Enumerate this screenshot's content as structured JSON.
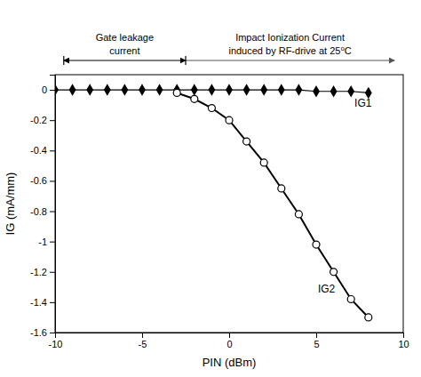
{
  "chart_data": {
    "type": "line",
    "x_label": "PIN (dBm)",
    "y_label": "IG (mA/mm)",
    "xlim": [
      -10,
      10
    ],
    "ylim": [
      -1.6,
      0.1
    ],
    "xticks": [
      -10,
      -5,
      0,
      5,
      10
    ],
    "yticks": [
      0,
      -0.2,
      -0.4,
      -0.6,
      -0.8,
      -1,
      -1.2,
      -1.4,
      -1.6
    ],
    "grid": false,
    "series": [
      {
        "color": "#000000",
        "marker": "diamond",
        "x": [
          -10,
          -9,
          -8,
          -7,
          -6,
          -5,
          -4,
          -3,
          -2,
          -1,
          0,
          1,
          2,
          3,
          4,
          5,
          6,
          7,
          8
        ],
        "values": [
          0.0,
          0.0,
          0.0,
          0.0,
          0.0,
          0.0,
          0.0,
          0.0,
          0.0,
          0.0,
          0.0,
          0.0,
          0.0,
          0.0,
          0.0,
          -0.01,
          -0.01,
          -0.01,
          -0.02
        ]
      },
      {
        "color": "#000000",
        "marker": "open-circle",
        "x": [
          -3,
          -2,
          -1,
          0,
          1,
          2,
          3,
          4,
          5,
          6,
          7,
          8
        ],
        "values": [
          -0.02,
          -0.06,
          -0.12,
          -0.2,
          -0.34,
          -0.48,
          -0.65,
          -0.82,
          -1.02,
          -1.2,
          -1.38,
          -1.5
        ]
      }
    ],
    "annotations": [
      {
        "text": "IG1",
        "x": 7.2,
        "y": -0.09
      },
      {
        "text": "IG2",
        "x": 5.1,
        "y": -1.32
      }
    ],
    "regions": [
      {
        "text": [
          "Gate leakage",
          "current"
        ],
        "x": [
          -9.5,
          -2.5
        ]
      },
      {
        "text": [
          "Impact Ionization Current",
          "induced by RF-drive at 25⁰C"
        ],
        "x": [
          -2.5,
          9.5
        ]
      }
    ]
  }
}
